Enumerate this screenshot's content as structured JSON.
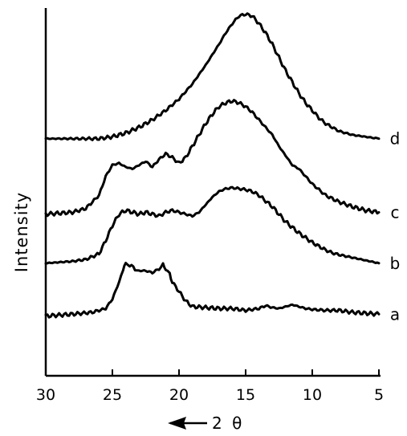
{
  "chart_data": {
    "type": "line",
    "title": "",
    "ylabel": "Intensity",
    "xlabel": "2 θ",
    "x_direction": "decreasing",
    "xlim": [
      30,
      5
    ],
    "x_ticks": [
      "30",
      "25",
      "20",
      "15",
      "10",
      "5"
    ],
    "y_ticks": [],
    "grid": false,
    "legend": "inline labels at right end of each curve",
    "series": [
      {
        "name": "a",
        "offset": 2.4,
        "x": [
          30,
          28,
          26.5,
          25.5,
          25,
          24.5,
          24.2,
          24,
          23.7,
          23.3,
          23,
          22.5,
          22,
          21.5,
          21.2,
          21,
          20.7,
          20.5,
          20,
          19.5,
          19,
          18,
          17,
          16,
          15,
          14,
          13.5,
          13,
          12.5,
          12,
          11.5,
          11,
          10.5,
          10,
          9,
          8,
          7,
          6,
          5
        ],
        "y": [
          0.0,
          0.1,
          0.2,
          0.4,
          0.9,
          1.8,
          2.5,
          2.8,
          2.7,
          2.5,
          2.4,
          2.4,
          2.3,
          2.5,
          2.7,
          2.5,
          2.2,
          1.8,
          1.3,
          0.8,
          0.5,
          0.45,
          0.4,
          0.4,
          0.3,
          0.4,
          0.55,
          0.45,
          0.4,
          0.5,
          0.6,
          0.5,
          0.4,
          0.35,
          0.3,
          0.3,
          0.2,
          0.15,
          0.1
        ]
      },
      {
        "name": "b",
        "offset": 5.2,
        "x": [
          30,
          28,
          27,
          26,
          25.5,
          25,
          24.5,
          24,
          23.5,
          23,
          22.5,
          22,
          21.5,
          21,
          20.5,
          20,
          19.5,
          19,
          18.5,
          18,
          17.5,
          17,
          16.5,
          16,
          15.5,
          15,
          14.5,
          14,
          13.5,
          13,
          12.5,
          12,
          11.5,
          11,
          10.5,
          10,
          9.5,
          9,
          8.5,
          8,
          7,
          6,
          5
        ],
        "y": [
          0.0,
          0.1,
          0.2,
          0.5,
          1.2,
          2.0,
          2.6,
          2.8,
          2.7,
          2.6,
          2.7,
          2.6,
          2.5,
          2.7,
          2.8,
          2.7,
          2.6,
          2.5,
          2.7,
          3.1,
          3.5,
          3.8,
          3.95,
          4.0,
          3.95,
          3.9,
          3.8,
          3.6,
          3.3,
          3.0,
          2.6,
          2.2,
          1.9,
          1.6,
          1.35,
          1.1,
          0.9,
          0.7,
          0.55,
          0.45,
          0.3,
          0.15,
          0.0
        ]
      },
      {
        "name": "c",
        "offset": 7.8,
        "x": [
          30,
          28,
          27,
          26,
          25.5,
          25,
          24.5,
          24,
          23.5,
          23,
          22.5,
          22,
          21.5,
          21,
          20.5,
          20,
          19.5,
          19,
          18.5,
          18,
          17.5,
          17,
          16.5,
          16,
          15.5,
          15,
          14.5,
          14,
          13.5,
          13,
          12.5,
          12,
          11.5,
          11,
          10.5,
          10,
          9.5,
          9,
          8,
          7,
          6,
          5
        ],
        "y": [
          0.0,
          0.1,
          0.3,
          1.0,
          2.0,
          2.6,
          2.7,
          2.5,
          2.4,
          2.6,
          2.8,
          2.5,
          2.9,
          3.2,
          3.0,
          2.7,
          3.0,
          3.6,
          4.2,
          4.8,
          5.3,
          5.7,
          5.9,
          6.0,
          5.9,
          5.7,
          5.4,
          5.0,
          4.6,
          4.2,
          3.6,
          3.1,
          2.6,
          2.4,
          2.0,
          1.6,
          1.3,
          1.0,
          0.65,
          0.4,
          0.2,
          0.1
        ]
      },
      {
        "name": "d",
        "offset": 11.8,
        "x": [
          30,
          28,
          26,
          25,
          24,
          23,
          22,
          21,
          20,
          19,
          18,
          17,
          16.5,
          16,
          15.5,
          15,
          14.5,
          14,
          13.5,
          13,
          12.5,
          12,
          11.5,
          11,
          10.5,
          10,
          9.5,
          9,
          8,
          7,
          6,
          5
        ],
        "y": [
          0.0,
          0.0,
          0.0,
          0.1,
          0.3,
          0.6,
          1.0,
          1.5,
          2.1,
          2.9,
          3.9,
          5.0,
          5.6,
          6.1,
          6.5,
          6.6,
          6.5,
          6.1,
          5.6,
          5.0,
          4.3,
          3.6,
          3.0,
          2.4,
          1.9,
          1.5,
          1.1,
          0.8,
          0.4,
          0.2,
          0.1,
          0.0
        ]
      }
    ]
  }
}
